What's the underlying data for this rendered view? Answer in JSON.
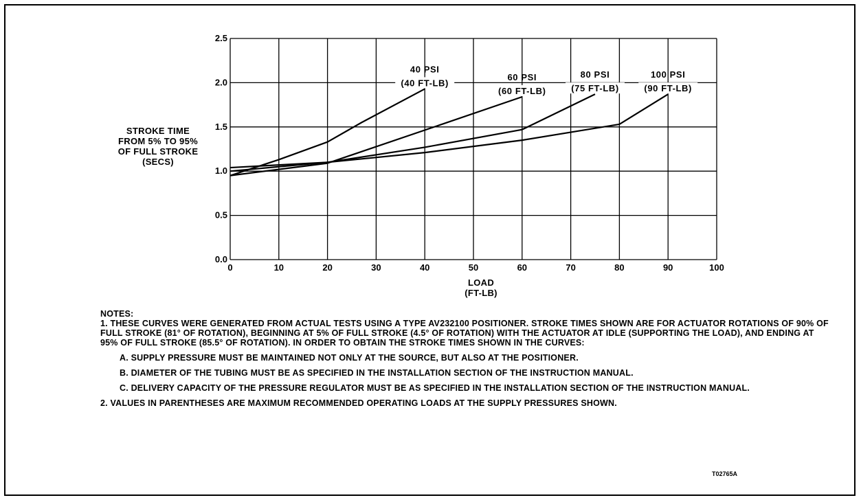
{
  "chart_data": {
    "type": "line",
    "title": "",
    "ylabel": [
      "STROKE TIME",
      "FROM 5% TO 95%",
      "OF FULL STROKE",
      "(SECS)"
    ],
    "xlabel": [
      "LOAD",
      "(FT-LB)"
    ],
    "xlim": [
      0,
      100
    ],
    "ylim": [
      0,
      2.5
    ],
    "x_ticks": [
      "0",
      "10",
      "20",
      "30",
      "40",
      "50",
      "60",
      "70",
      "80",
      "90",
      "100"
    ],
    "y_ticks": [
      "0.0",
      "0.5",
      "1.0",
      "1.5",
      "2.0",
      "2.5"
    ],
    "grid": true,
    "series": [
      {
        "name": "40 PSI",
        "label_lines": [
          "40 PSI",
          "(40 FT-LB)"
        ],
        "points": [
          [
            0,
            0.95
          ],
          [
            10,
            1.13
          ],
          [
            20,
            1.33
          ],
          [
            27,
            1.55
          ],
          [
            40,
            1.93
          ]
        ]
      },
      {
        "name": "60 PSI",
        "label_lines": [
          "60 PSI",
          "(60 FT-LB)"
        ],
        "points": [
          [
            0,
            0.95
          ],
          [
            20,
            1.09
          ],
          [
            43,
            1.52
          ],
          [
            60,
            1.84
          ]
        ]
      },
      {
        "name": "80 PSI",
        "label_lines": [
          "80 PSI",
          "(75 FT-LB)"
        ],
        "points": [
          [
            0,
            1.0
          ],
          [
            20,
            1.1
          ],
          [
            40,
            1.27
          ],
          [
            60,
            1.47
          ],
          [
            75,
            1.87
          ]
        ]
      },
      {
        "name": "100 PSI",
        "label_lines": [
          "100 PSI",
          "(90 FT-LB)"
        ],
        "points": [
          [
            0,
            1.04
          ],
          [
            20,
            1.1
          ],
          [
            40,
            1.21
          ],
          [
            60,
            1.35
          ],
          [
            80,
            1.53
          ],
          [
            90,
            1.87
          ]
        ]
      }
    ]
  },
  "notes": {
    "title": "NOTES:",
    "note1": "1. THESE CURVES WERE GENERATED FROM ACTUAL TESTS USING A TYPE AV232100 POSITIONER.  STROKE TIMES SHOWN ARE FOR ACTUATOR ROTATIONS OF 90% OF FULL STROKE (81° OF ROTATION), BEGINNING AT 5% OF FULL STROKE (4.5° OF ROTATION) WITH THE ACTUATOR AT IDLE (SUPPORTING THE LOAD), AND ENDING AT 95% OF FULL STROKE (85.5° OF ROTATION). IN ORDER TO OBTAIN THE STROKE TIMES SHOWN IN THE CURVES:",
    "note1a": "A. SUPPLY PRESSURE MUST BE MAINTAINED NOT ONLY AT THE SOURCE, BUT ALSO AT THE POSITIONER.",
    "note1b": "B. DIAMETER OF THE TUBING MUST BE AS SPECIFIED IN THE INSTALLATION SECTION OF THE INSTRUCTION MANUAL.",
    "note1c": "C. DELIVERY CAPACITY OF THE PRESSURE REGULATOR MUST BE AS SPECIFIED IN THE INSTALLATION SECTION OF THE INSTRUCTION MANUAL.",
    "note2": "2. VALUES IN PARENTHESES ARE MAXIMUM RECOMMENDED OPERATING LOADS AT THE SUPPLY PRESSURES SHOWN."
  },
  "figure_id": "T02765A"
}
